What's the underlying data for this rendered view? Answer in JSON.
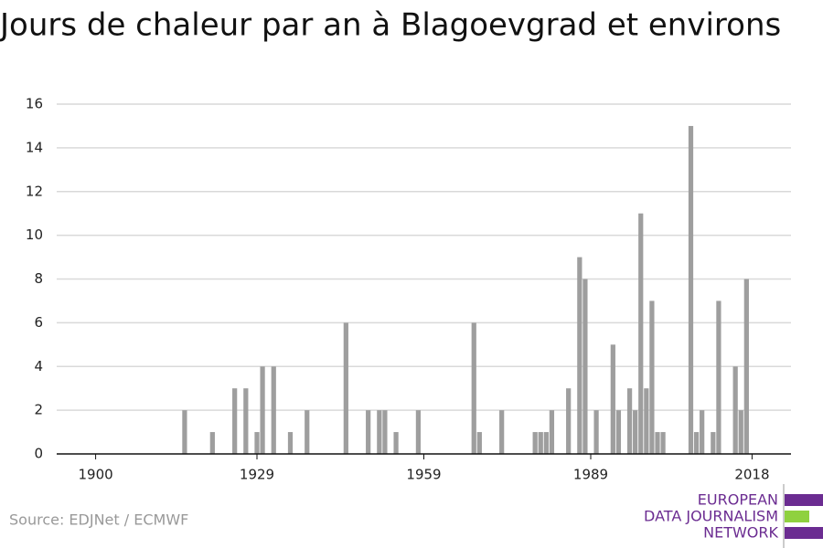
{
  "chart_data": {
    "type": "bar",
    "title": "Jours de chaleur par an à Blagoevgrad et environs",
    "x": [
      1916,
      1921,
      1925,
      1927,
      1929,
      1930,
      1932,
      1935,
      1938,
      1945,
      1949,
      1951,
      1952,
      1954,
      1958,
      1968,
      1969,
      1973,
      1979,
      1980,
      1981,
      1982,
      1985,
      1987,
      1988,
      1990,
      1993,
      1994,
      1996,
      1997,
      1998,
      1999,
      2000,
      2001,
      2002,
      2007,
      2008,
      2009,
      2011,
      2012,
      2015,
      2016,
      2017
    ],
    "values": [
      2,
      1,
      3,
      3,
      1,
      4,
      4,
      1,
      2,
      6,
      2,
      2,
      2,
      1,
      2,
      6,
      1,
      2,
      1,
      1,
      1,
      2,
      3,
      9,
      8,
      2,
      5,
      2,
      3,
      2,
      11,
      3,
      7,
      1,
      1,
      15,
      1,
      2,
      1,
      7,
      4,
      2,
      8
    ],
    "color": "#9e9e9e",
    "xlim": [
      1893,
      2025
    ],
    "xticks": [
      1900,
      1929,
      1959,
      1989,
      2018
    ],
    "ylim": [
      0,
      16
    ],
    "yticks": [
      0,
      2,
      4,
      6,
      8,
      10,
      12,
      14,
      16
    ],
    "grid": true
  },
  "source": "Source: EDJNet / ECMWF",
  "logo": {
    "line1": "EUROPEAN",
    "line2": "DATA JOURNALISM",
    "line3": "NETWORK"
  }
}
